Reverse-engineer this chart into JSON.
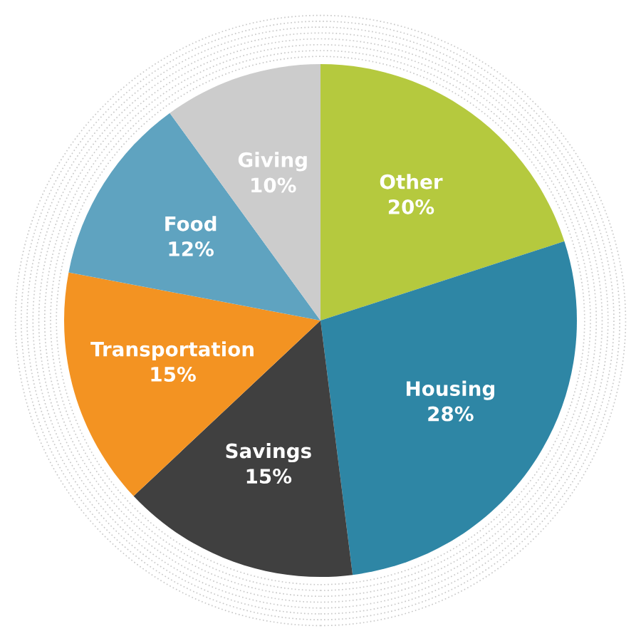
{
  "chart_data": {
    "type": "pie",
    "categories": [
      "Other",
      "Housing",
      "Savings",
      "Transportation",
      "Food",
      "Giving"
    ],
    "values": [
      20,
      28,
      15,
      15,
      12,
      10
    ],
    "value_labels": [
      "20%",
      "28%",
      "15%",
      "15%",
      "12%",
      "10%"
    ],
    "colors": [
      "#b5c93e",
      "#2e86a5",
      "#404040",
      "#f39322",
      "#5fa3c0",
      "#cccccc"
    ]
  }
}
